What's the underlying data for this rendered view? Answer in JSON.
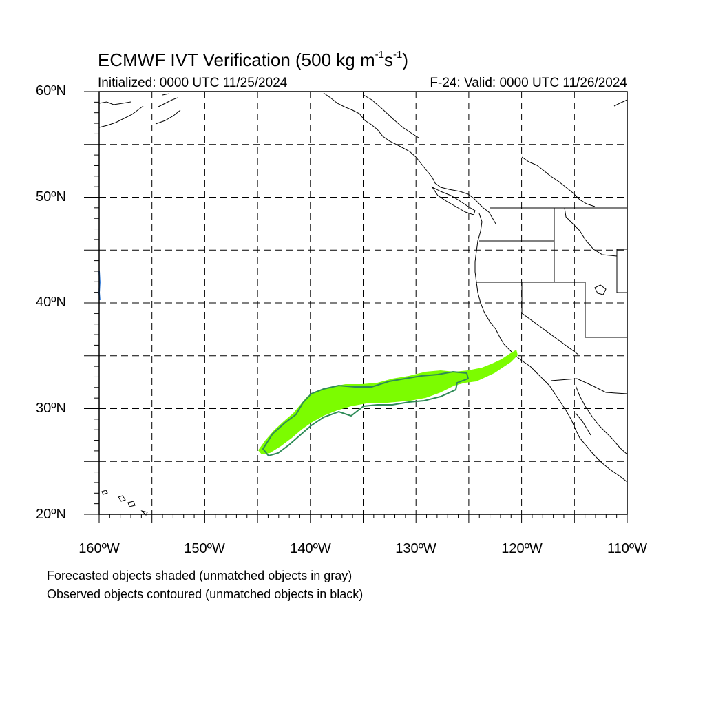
{
  "title": {
    "main": "ECMWF IVT Verification (500 kg m",
    "exp1": "-1",
    "mid": "s",
    "exp2": "-1",
    "end": ")"
  },
  "subtitle_left": "Initialized: 0000 UTC 11/25/2024",
  "subtitle_right": "F-24: Valid: 0000 UTC 11/26/2024",
  "lat_labels": [
    "60ºN",
    "50ºN",
    "40ºN",
    "30ºN",
    "20ºN"
  ],
  "lon_labels": [
    "160ºW",
    "150ºW",
    "140ºW",
    "130ºW",
    "120ºW",
    "110ºW"
  ],
  "notes": [
    "Forecasted objects shaded (unmatched objects in gray)",
    "Observed objects contoured (unmatched objects in black)"
  ],
  "colors": {
    "forecast_fill": "#7cfc00",
    "observed_contour": "#2e8b57",
    "coastline": "#000000",
    "grid": "#000000",
    "edge_artifact": "#3a7fd8"
  }
}
